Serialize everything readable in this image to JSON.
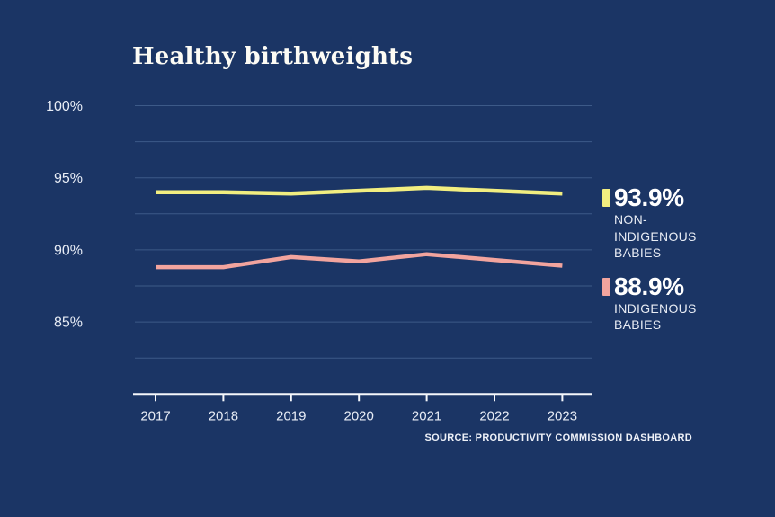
{
  "page": {
    "background": "#1b3565"
  },
  "chart_data": {
    "type": "line",
    "title": "Healthy birthweights",
    "x": [
      2017,
      2018,
      2019,
      2020,
      2021,
      2022,
      2023
    ],
    "series": [
      {
        "name": "NON-INDIGENOUS BABIES",
        "color": "#f2ee80",
        "values": [
          94.0,
          94.0,
          93.9,
          94.1,
          94.3,
          94.1,
          93.9
        ],
        "end_label": "93.9%"
      },
      {
        "name": "INDIGENOUS BABIES",
        "color": "#f2a49e",
        "values": [
          88.8,
          88.8,
          89.5,
          89.2,
          89.7,
          89.3,
          88.9
        ],
        "end_label": "88.9%"
      }
    ],
    "ylim": [
      80,
      100
    ],
    "grid": true,
    "grid_step": 2.5,
    "yticks": [
      {
        "value": 100,
        "label": "100%"
      },
      {
        "value": 95,
        "label": "95%"
      },
      {
        "value": 90,
        "label": "90%"
      },
      {
        "value": 85,
        "label": "85%"
      }
    ],
    "legend_position": "right"
  },
  "legend": {
    "items": [
      {
        "value": "93.9%",
        "label": "NON-INDIGENOUS BABIES",
        "color": "#f2ee80"
      },
      {
        "value": "88.9%",
        "label": "INDIGENOUS BABIES",
        "color": "#f2a49e"
      }
    ]
  },
  "source": {
    "text": "SOURCE: PRODUCTIVITY COMMISSION DASHBOARD"
  },
  "colors": {
    "background": "#1b3565",
    "gridline": "#3d5a88",
    "axis": "#f5f7fb",
    "tick_label": "#e8edf6",
    "title_text": "#fdfcf5"
  }
}
